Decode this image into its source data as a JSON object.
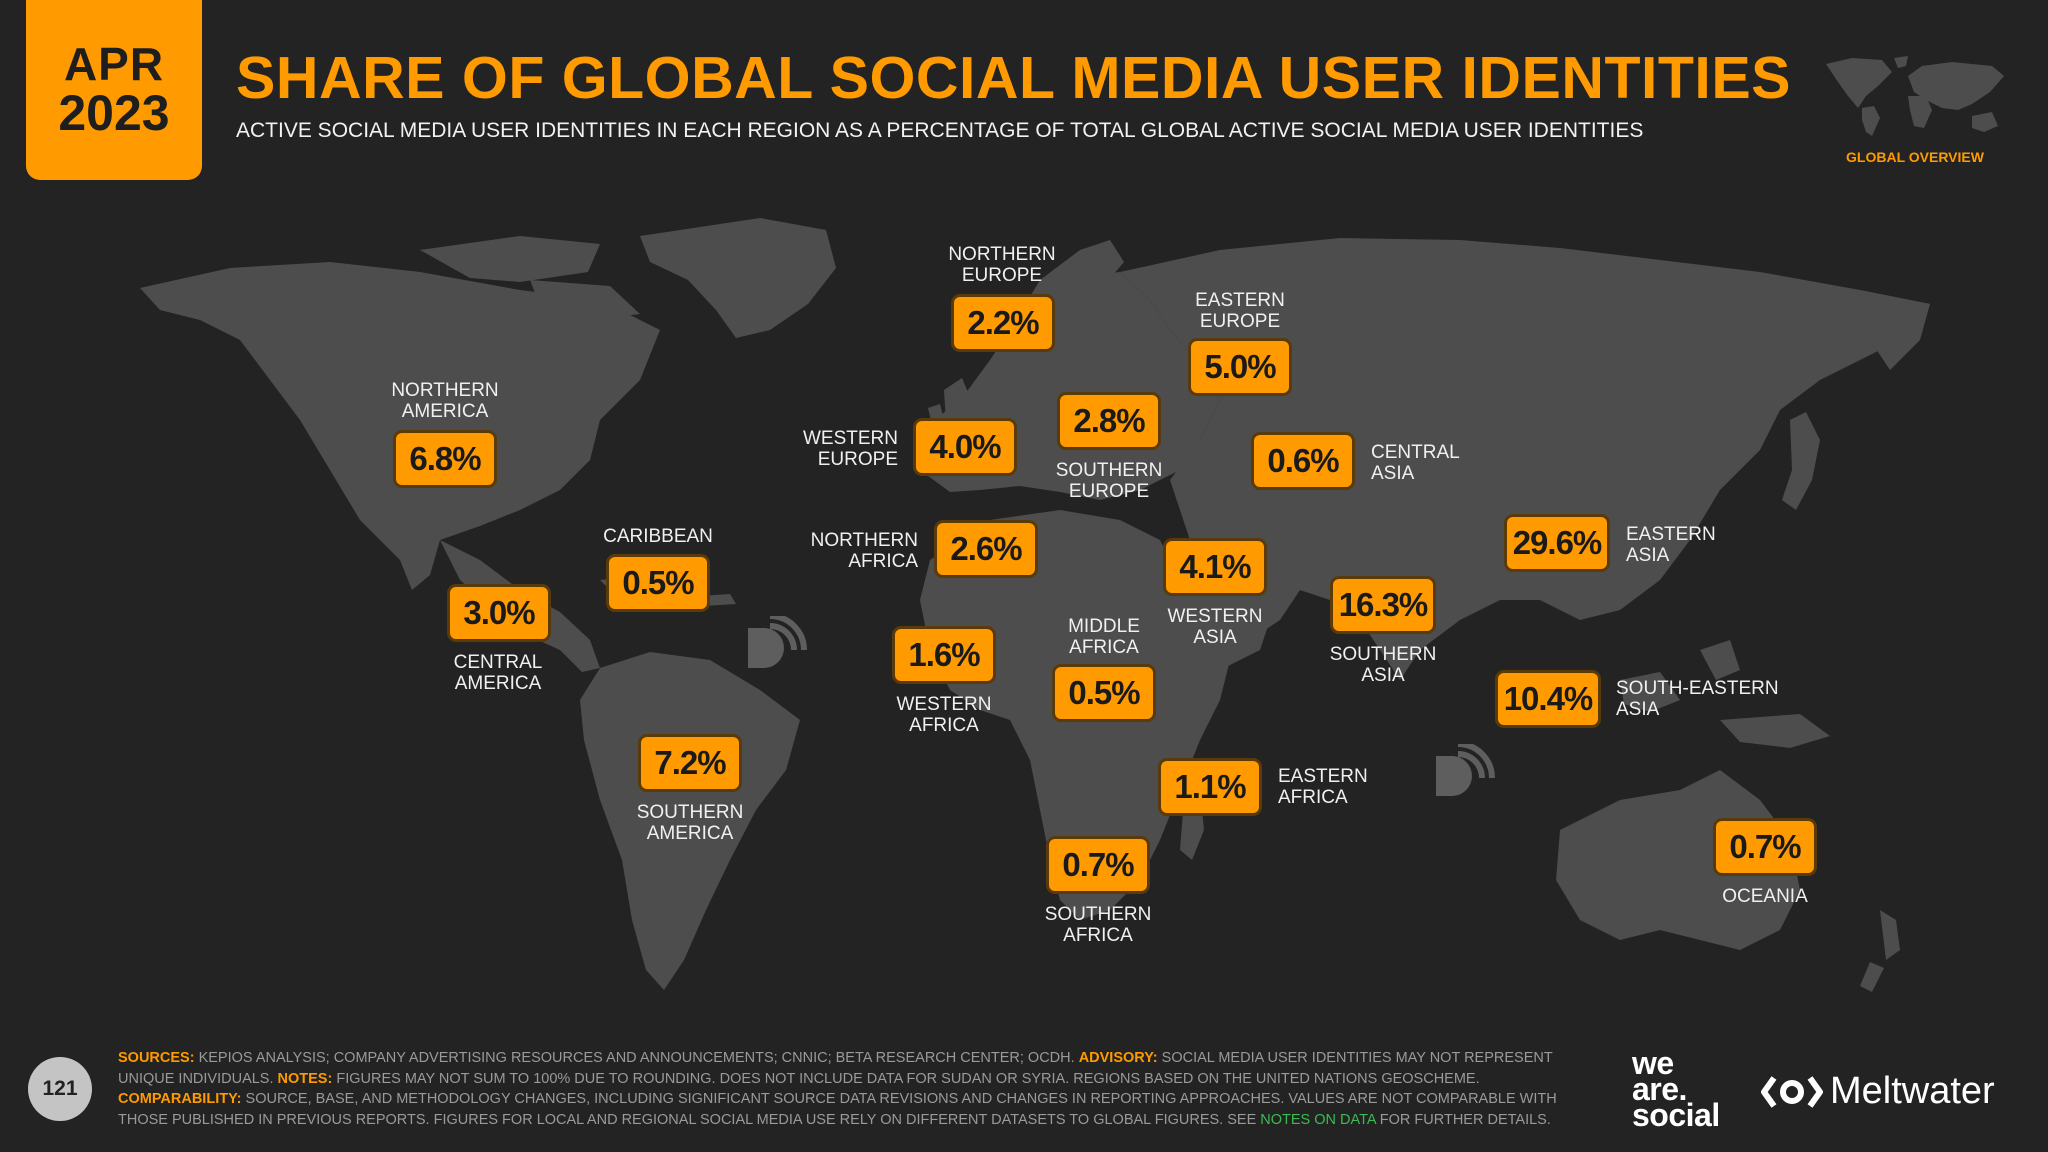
{
  "header": {
    "month": "APR",
    "year": "2023",
    "title": "SHARE OF GLOBAL SOCIAL MEDIA USER IDENTITIES",
    "subtitle": "ACTIVE SOCIAL MEDIA USER IDENTITIES IN EACH REGION AS A PERCENTAGE OF TOTAL GLOBAL ACTIVE SOCIAL MEDIA USER IDENTITIES",
    "overview_label": "GLOBAL OVERVIEW"
  },
  "regions": {
    "northern_america": {
      "label": "NORTHERN\nAMERICA",
      "value": "6.8%"
    },
    "central_america": {
      "label": "CENTRAL\nAMERICA",
      "value": "3.0%"
    },
    "caribbean": {
      "label": "CARIBBEAN",
      "value": "0.5%"
    },
    "southern_america": {
      "label": "SOUTHERN\nAMERICA",
      "value": "7.2%"
    },
    "northern_europe": {
      "label": "NORTHERN\nEUROPE",
      "value": "2.2%"
    },
    "western_europe": {
      "label": "WESTERN\nEUROPE",
      "value": "4.0%"
    },
    "southern_europe": {
      "label": "SOUTHERN\nEUROPE",
      "value": "2.8%"
    },
    "eastern_europe": {
      "label": "EASTERN\nEUROPE",
      "value": "5.0%"
    },
    "central_asia": {
      "label": "CENTRAL\nASIA",
      "value": "0.6%"
    },
    "northern_africa": {
      "label": "NORTHERN\nAFRICA",
      "value": "2.6%"
    },
    "western_asia": {
      "label": "WESTERN\nASIA",
      "value": "4.1%"
    },
    "western_africa": {
      "label": "WESTERN\nAFRICA",
      "value": "1.6%"
    },
    "middle_africa": {
      "label": "MIDDLE\nAFRICA",
      "value": "0.5%"
    },
    "eastern_africa": {
      "label": "EASTERN\nAFRICA",
      "value": "1.1%"
    },
    "southern_africa": {
      "label": "SOUTHERN\nAFRICA",
      "value": "0.7%"
    },
    "southern_asia": {
      "label": "SOUTHERN\nASIA",
      "value": "16.3%"
    },
    "eastern_asia": {
      "label": "EASTERN\nASIA",
      "value": "29.6%"
    },
    "south_eastern_asia": {
      "label": "SOUTH-EASTERN\nASIA",
      "value": "10.4%"
    },
    "oceania": {
      "label": "OCEANIA",
      "value": "0.7%"
    }
  },
  "footer": {
    "page_number": "121",
    "sources_key": "SOURCES:",
    "sources_text": " KEPIOS ANALYSIS; COMPANY ADVERTISING RESOURCES AND ANNOUNCEMENTS; CNNIC; BETA RESEARCH CENTER; OCDH. ",
    "advisory_key": "ADVISORY:",
    "advisory_text": " SOCIAL MEDIA USER IDENTITIES MAY NOT REPRESENT UNIQUE INDIVIDUALS. ",
    "notes_key": "NOTES:",
    "notes_text": " FIGURES MAY NOT SUM TO 100% DUE TO ROUNDING. DOES NOT INCLUDE DATA FOR SUDAN OR SYRIA. REGIONS BASED ON THE UNITED NATIONS GEOSCHEME.",
    "comparability_key": "COMPARABILITY:",
    "comparability_text": " SOURCE, BASE, AND METHODOLOGY CHANGES, INCLUDING SIGNIFICANT SOURCE DATA REVISIONS AND CHANGES IN REPORTING APPROACHES. VALUES ARE NOT COMPARABLE WITH THOSE PUBLISHED IN PREVIOUS REPORTS. FIGURES FOR LOCAL AND REGIONAL SOCIAL MEDIA USE RELY ON DIFFERENT DATASETS TO GLOBAL FIGURES. SEE ",
    "notes_link": "NOTES ON DATA",
    "comparability_end": " FOR FURTHER DETAILS."
  },
  "brands": {
    "we_are_social": [
      "we",
      "are.",
      "social"
    ],
    "meltwater": "Meltwater"
  },
  "colors": {
    "accent": "#ff9a00",
    "background": "#232323",
    "land": "#4d4d4d",
    "link": "#3dbb52"
  }
}
